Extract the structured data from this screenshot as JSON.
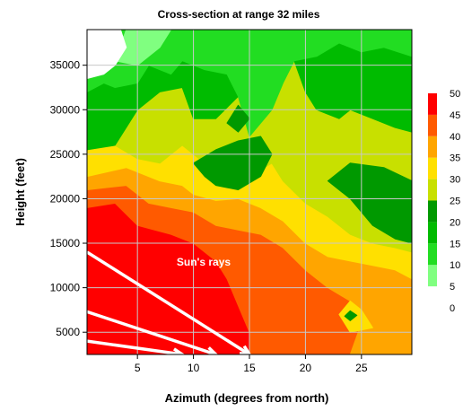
{
  "chart_data": {
    "type": "heatmap",
    "subtype": "filled-contour",
    "title": "Cross-section at range 32 miles",
    "xlabel": "Azimuth (degrees from north)",
    "ylabel": "Height (feet)",
    "xlim": [
      0.5,
      29.5
    ],
    "ylim": [
      2500,
      39000
    ],
    "x_ticks": [
      5,
      10,
      15,
      20,
      25
    ],
    "y_ticks": [
      5000,
      10000,
      15000,
      20000,
      25000,
      30000,
      35000
    ],
    "grid": true,
    "colorbar": {
      "position": "right",
      "ticks": [
        0,
        5,
        10,
        15,
        20,
        25,
        30,
        35,
        40,
        45,
        50
      ],
      "levels": [
        {
          "from": 5,
          "to": 10,
          "color": "#80ff80"
        },
        {
          "from": 10,
          "to": 15,
          "color": "#22dd22"
        },
        {
          "from": 15,
          "to": 20,
          "color": "#00bb00"
        },
        {
          "from": 20,
          "to": 25,
          "color": "#009900"
        },
        {
          "from": 25,
          "to": 30,
          "color": "#c8e000"
        },
        {
          "from": 30,
          "to": 35,
          "color": "#ffe000"
        },
        {
          "from": 35,
          "to": 40,
          "color": "#ffa500"
        },
        {
          "from": 40,
          "to": 45,
          "color": "#ff5a00"
        },
        {
          "from": 45,
          "to": 50,
          "color": "#ff0000"
        }
      ]
    },
    "bands": [
      {
        "level": 45,
        "color": "#ff0000",
        "points": [
          [
            0.5,
            2500
          ],
          [
            0.5,
            19000
          ],
          [
            3,
            19500
          ],
          [
            5,
            17000
          ],
          [
            8,
            16000
          ],
          [
            10,
            15000
          ],
          [
            12,
            13000
          ],
          [
            13,
            11000
          ],
          [
            14,
            8000
          ],
          [
            15,
            5000
          ],
          [
            15,
            2500
          ]
        ]
      },
      {
        "level": 40,
        "color": "#ff5a00",
        "points": [
          [
            0.5,
            19000
          ],
          [
            0.5,
            21000
          ],
          [
            4,
            21500
          ],
          [
            6,
            19500
          ],
          [
            8,
            19000
          ],
          [
            10,
            18500
          ],
          [
            12,
            17000
          ],
          [
            14,
            16500
          ],
          [
            16,
            16000
          ],
          [
            18,
            14500
          ],
          [
            20,
            12000
          ],
          [
            22,
            10000
          ],
          [
            24,
            8500
          ],
          [
            25,
            6000
          ],
          [
            24,
            2500
          ],
          [
            15,
            2500
          ],
          [
            15,
            5000
          ],
          [
            14,
            8000
          ],
          [
            13,
            11000
          ],
          [
            12,
            13000
          ],
          [
            10,
            15000
          ],
          [
            8,
            16000
          ],
          [
            5,
            17000
          ],
          [
            3,
            19500
          ]
        ]
      },
      {
        "level": 35,
        "color": "#ffa500",
        "points": [
          [
            0.5,
            21000
          ],
          [
            0.5,
            22500
          ],
          [
            4,
            23500
          ],
          [
            7,
            22000
          ],
          [
            9,
            21500
          ],
          [
            10,
            20500
          ],
          [
            12,
            19800
          ],
          [
            14,
            20000
          ],
          [
            16,
            19000
          ],
          [
            18,
            17500
          ],
          [
            20,
            15000
          ],
          [
            22,
            13500
          ],
          [
            24,
            13000
          ],
          [
            26,
            12500
          ],
          [
            28,
            12000
          ],
          [
            29.5,
            11000
          ],
          [
            29.5,
            2500
          ],
          [
            24,
            2500
          ],
          [
            25,
            6000
          ],
          [
            24,
            8500
          ],
          [
            22,
            10000
          ],
          [
            20,
            12000
          ],
          [
            18,
            14500
          ],
          [
            16,
            16000
          ],
          [
            14,
            16500
          ],
          [
            12,
            17000
          ],
          [
            10,
            18500
          ],
          [
            8,
            19000
          ],
          [
            6,
            19500
          ],
          [
            4,
            21500
          ]
        ]
      },
      {
        "level": 30,
        "color": "#ffe000",
        "points": [
          [
            0.5,
            22500
          ],
          [
            0.5,
            25500
          ],
          [
            3,
            26000
          ],
          [
            5,
            24500
          ],
          [
            7,
            24000
          ],
          [
            9,
            26000
          ],
          [
            11,
            24000
          ],
          [
            12,
            23000
          ],
          [
            13,
            23500
          ],
          [
            15,
            22500
          ],
          [
            17,
            24000
          ],
          [
            18,
            22000
          ],
          [
            20,
            19500
          ],
          [
            22,
            18000
          ],
          [
            24,
            16000
          ],
          [
            26,
            15000
          ],
          [
            28,
            14500
          ],
          [
            29.5,
            14000
          ],
          [
            29.5,
            11000
          ],
          [
            28,
            12000
          ],
          [
            26,
            12500
          ],
          [
            24,
            13000
          ],
          [
            22,
            13500
          ],
          [
            20,
            15000
          ],
          [
            18,
            17500
          ],
          [
            16,
            19000
          ],
          [
            14,
            20000
          ],
          [
            12,
            19800
          ],
          [
            10,
            20500
          ],
          [
            9,
            21500
          ],
          [
            7,
            22000
          ],
          [
            4,
            23500
          ]
        ]
      },
      {
        "level": 25,
        "color": "#c8e000",
        "points": [
          [
            3,
            26000
          ],
          [
            4,
            28000
          ],
          [
            5,
            30000
          ],
          [
            7,
            32000
          ],
          [
            9,
            32500
          ],
          [
            10,
            29000
          ],
          [
            12,
            27500
          ],
          [
            13,
            26000
          ],
          [
            15,
            27000
          ],
          [
            17,
            30000
          ],
          [
            18,
            33000
          ],
          [
            19,
            35500
          ],
          [
            20,
            32000
          ],
          [
            21,
            30000
          ],
          [
            23,
            29000
          ],
          [
            24,
            30000
          ],
          [
            26,
            29000
          ],
          [
            28,
            28000
          ],
          [
            29.5,
            27500
          ],
          [
            29.5,
            14000
          ],
          [
            28,
            14500
          ],
          [
            26,
            15000
          ],
          [
            24,
            16000
          ],
          [
            22,
            18000
          ],
          [
            20,
            19500
          ],
          [
            18,
            22000
          ],
          [
            17,
            24000
          ],
          [
            15,
            22500
          ],
          [
            13,
            23500
          ],
          [
            12,
            23000
          ],
          [
            11,
            24000
          ],
          [
            9,
            26000
          ],
          [
            7,
            24000
          ],
          [
            5,
            24500
          ]
        ]
      },
      {
        "level": 20,
        "color": "#009900",
        "points": [
          [
            10,
            24000
          ],
          [
            11,
            22500
          ],
          [
            12,
            21500
          ],
          [
            14,
            21000
          ],
          [
            16,
            22500
          ],
          [
            17,
            25000
          ],
          [
            16,
            27000
          ],
          [
            14,
            26500
          ],
          [
            12,
            25500
          ]
        ]
      },
      {
        "level": 20,
        "color": "#009900",
        "points": [
          [
            22,
            22000
          ],
          [
            24,
            20000
          ],
          [
            26,
            17000
          ],
          [
            28,
            15500
          ],
          [
            29.5,
            15000
          ],
          [
            29.5,
            22000
          ],
          [
            27,
            23500
          ],
          [
            24,
            24000
          ]
        ]
      },
      {
        "level": 15,
        "color": "#00bb00",
        "points": [
          [
            0.5,
            25500
          ],
          [
            0.5,
            32000
          ],
          [
            2,
            33000
          ],
          [
            3,
            32500
          ],
          [
            5,
            33000
          ],
          [
            6,
            35000
          ],
          [
            8,
            34000
          ],
          [
            9,
            35500
          ],
          [
            11,
            34500
          ],
          [
            13,
            34000
          ],
          [
            14,
            31500
          ],
          [
            12,
            29000
          ],
          [
            10,
            29000
          ],
          [
            9,
            32500
          ],
          [
            7,
            32000
          ],
          [
            5,
            30000
          ],
          [
            4,
            28000
          ],
          [
            3,
            26000
          ]
        ]
      },
      {
        "level": 15,
        "color": "#00bb00",
        "points": [
          [
            19,
            35500
          ],
          [
            20,
            32000
          ],
          [
            21,
            30000
          ],
          [
            23,
            29000
          ],
          [
            24,
            30000
          ],
          [
            26,
            29000
          ],
          [
            28,
            28000
          ],
          [
            29.5,
            27500
          ],
          [
            29.5,
            36000
          ],
          [
            27,
            37000
          ],
          [
            25,
            36500
          ],
          [
            23,
            37500
          ],
          [
            21,
            36000
          ]
        ]
      },
      {
        "level": 10,
        "color": "#22dd22",
        "points": [
          [
            0.5,
            32000
          ],
          [
            0.5,
            39000
          ],
          [
            29.5,
            39000
          ],
          [
            29.5,
            36000
          ],
          [
            27,
            37000
          ],
          [
            25,
            36500
          ],
          [
            23,
            37500
          ],
          [
            21,
            36000
          ],
          [
            19,
            35500
          ],
          [
            18,
            33000
          ],
          [
            17,
            30000
          ],
          [
            15,
            27000
          ],
          [
            14,
            31500
          ],
          [
            13,
            34000
          ],
          [
            11,
            34500
          ],
          [
            9,
            35500
          ],
          [
            8,
            34000
          ],
          [
            6,
            35000
          ],
          [
            5,
            33000
          ],
          [
            3,
            32500
          ],
          [
            2,
            33000
          ]
        ]
      },
      {
        "level": 5,
        "color": "#80ff80",
        "points": [
          [
            3,
            35500
          ],
          [
            4,
            39000
          ],
          [
            8,
            39000
          ],
          [
            7,
            37000
          ],
          [
            5,
            35000
          ]
        ]
      },
      {
        "level": 0,
        "color": "#ffffff",
        "points": [
          [
            0.5,
            33500
          ],
          [
            0.5,
            39000
          ],
          [
            3.5,
            39000
          ],
          [
            4,
            37000
          ],
          [
            3,
            35000
          ],
          [
            2,
            34000
          ]
        ]
      },
      {
        "level": 5,
        "color": "#80ff80",
        "points": [
          [
            5,
            36000
          ],
          [
            6,
            38000
          ],
          [
            7,
            39000
          ],
          [
            5.5,
            39000
          ]
        ]
      },
      {
        "level": 20,
        "color": "#009900",
        "points": [
          [
            13,
            28500
          ],
          [
            14,
            27500
          ],
          [
            15,
            29000
          ],
          [
            14,
            30500
          ]
        ]
      },
      {
        "level": 30,
        "color": "#ffe000",
        "points": [
          [
            23,
            7000
          ],
          [
            24,
            8500
          ],
          [
            25,
            7500
          ],
          [
            26,
            5500
          ],
          [
            24,
            5000
          ]
        ]
      },
      {
        "level": 20,
        "color": "#009900",
        "points": [
          [
            23.5,
            6800
          ],
          [
            24,
            7400
          ],
          [
            24.6,
            6900
          ],
          [
            24,
            6300
          ]
        ]
      }
    ],
    "annotation": {
      "text": "Sun's rays",
      "at": [
        8.5,
        12500
      ],
      "rays": [
        [
          [
            0.5,
            14000
          ],
          [
            15,
            2500
          ]
        ],
        [
          [
            0.5,
            7300
          ],
          [
            12,
            2500
          ]
        ],
        [
          [
            0.5,
            4000
          ],
          [
            9,
            2500
          ]
        ]
      ]
    }
  }
}
